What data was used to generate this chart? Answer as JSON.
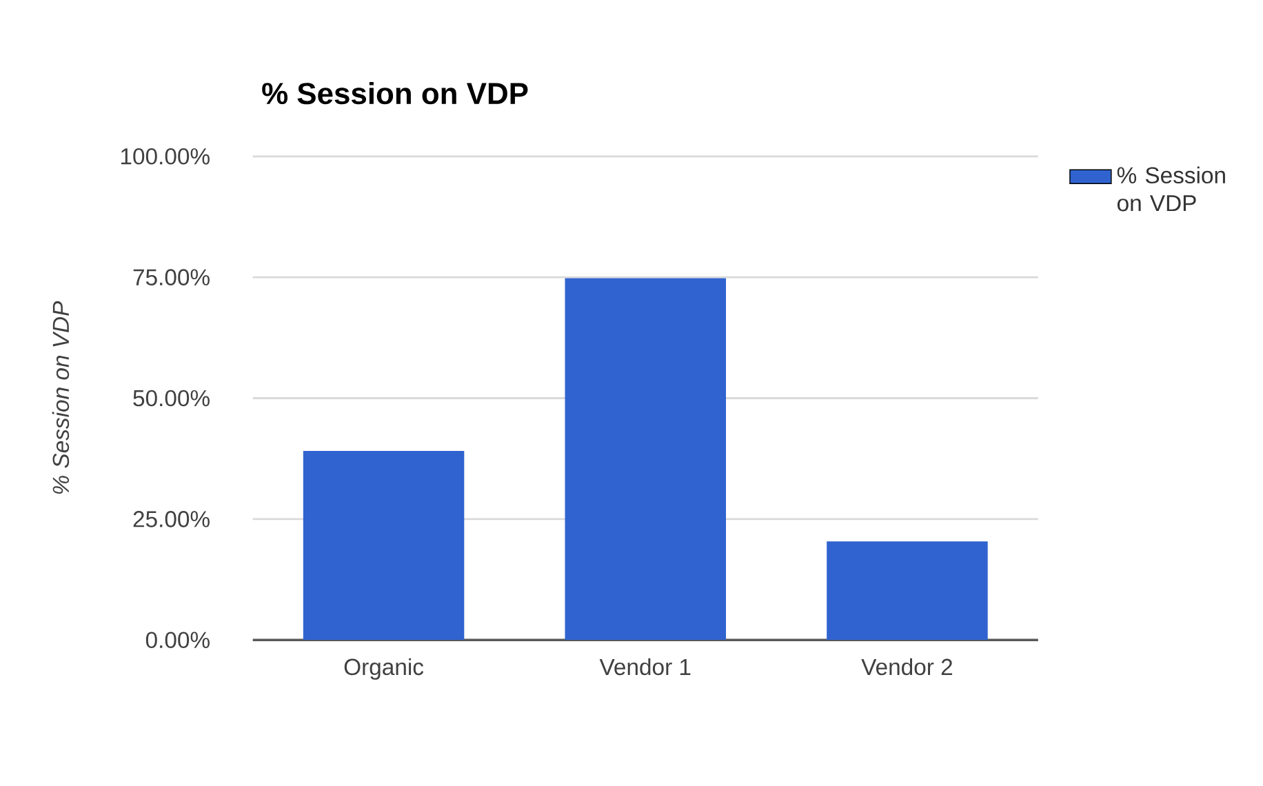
{
  "chart_data": {
    "type": "bar",
    "title": "% Session on VDP",
    "ylabel": "% Session on VDP",
    "categories": [
      "Organic",
      "Vendor 1",
      "Vendor 2"
    ],
    "series": [
      {
        "name": "% Session on VDP",
        "color": "#3063cf",
        "values": [
          39.1,
          74.8,
          20.4
        ]
      }
    ],
    "ylim": [
      0,
      100
    ],
    "yticks": [
      {
        "value": 0,
        "label": "0.00%"
      },
      {
        "value": 25,
        "label": "25.00%"
      },
      {
        "value": 50,
        "label": "50.00%"
      },
      {
        "value": 75,
        "label": "75.00%"
      },
      {
        "value": 100,
        "label": "100.00%"
      }
    ],
    "grid": "y",
    "legend": "top right"
  }
}
